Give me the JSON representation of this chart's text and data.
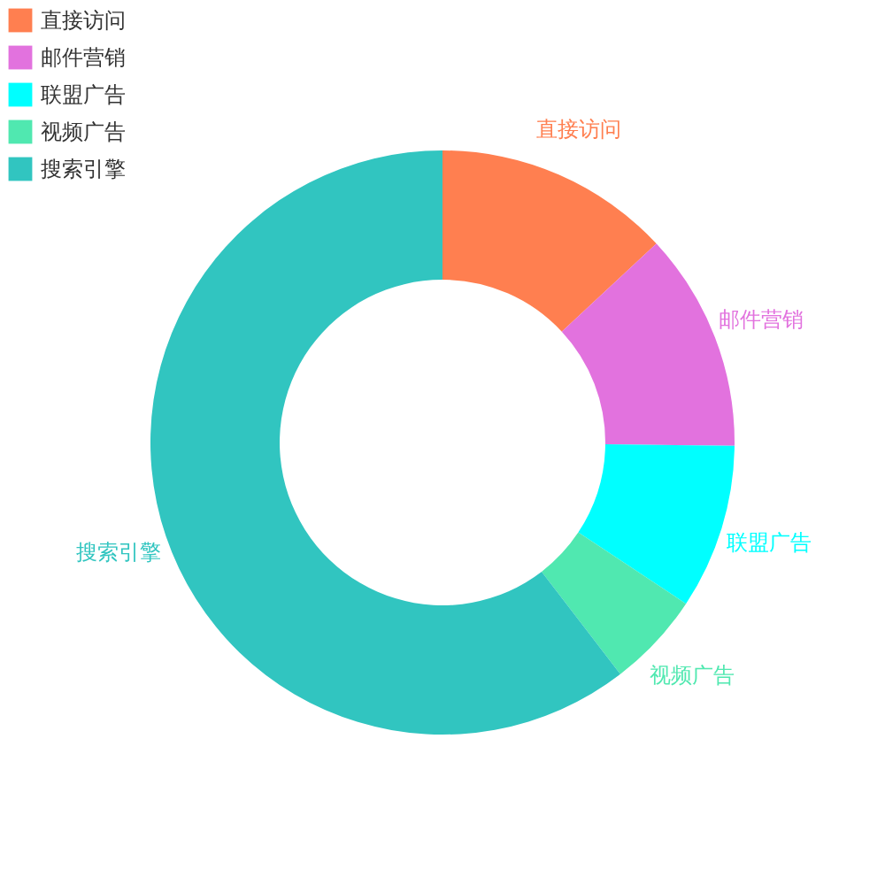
{
  "chart_data": {
    "type": "donut",
    "categories": [
      "直接访问",
      "邮件营销",
      "联盟广告",
      "视频广告",
      "搜索引擎"
    ],
    "values": [
      13.08,
      12.1,
      9.13,
      5.27,
      60.42
    ],
    "colors": [
      "#ff7f50",
      "#e272de",
      "#00ffff",
      "#50e8b0",
      "#31c5c0"
    ],
    "legend": "top left"
  }
}
